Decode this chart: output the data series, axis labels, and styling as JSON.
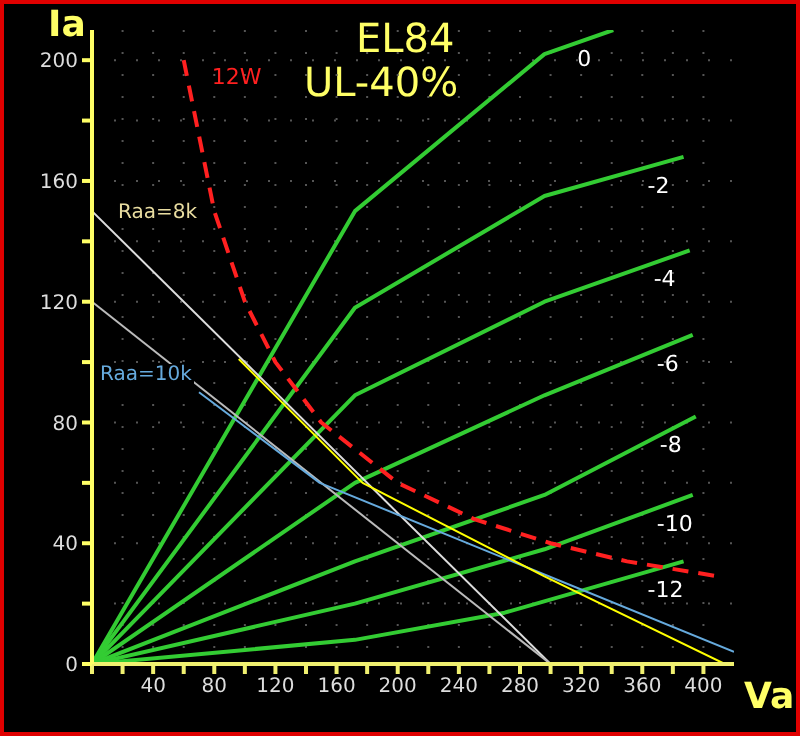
{
  "chart_data": {
    "type": "line",
    "title": "EL84",
    "subtitle": "UL-40%",
    "xlabel": "Va",
    "ylabel": "Ia",
    "xlim": [
      0,
      420
    ],
    "ylim": [
      0,
      210
    ],
    "xticks": [
      {
        "value": 0,
        "label": null
      },
      {
        "value": 20,
        "label": null
      },
      40,
      {
        "value": 60,
        "label": null
      },
      80,
      {
        "value": 100,
        "label": null
      },
      120,
      {
        "value": 140,
        "label": null
      },
      160,
      {
        "value": 180,
        "label": null
      },
      200,
      {
        "value": 220,
        "label": null
      },
      240,
      {
        "value": 260,
        "label": null
      },
      280,
      {
        "value": 300,
        "label": null
      },
      320,
      {
        "value": 340,
        "label": null
      },
      360,
      {
        "value": 380,
        "label": null
      },
      400
    ],
    "yticks": [
      0,
      {
        "value": 20,
        "label": null
      },
      40,
      {
        "value": 60,
        "label": null
      },
      80,
      {
        "value": 100,
        "label": null
      },
      120,
      {
        "value": 140,
        "label": null
      },
      160,
      {
        "value": 180,
        "label": null
      },
      200
    ],
    "grid": true,
    "marker": "none",
    "series": [
      {
        "name": "0",
        "color": "#33cc33",
        "x": [
          0,
          172,
          296,
          341
        ],
        "values": [
          0,
          150,
          202,
          210
        ]
      },
      {
        "name": "-2",
        "color": "#33cc33",
        "x": [
          0,
          172,
          296,
          387
        ],
        "values": [
          0,
          118,
          155,
          168
        ]
      },
      {
        "name": "-4",
        "color": "#33cc33",
        "x": [
          0,
          172,
          296,
          391
        ],
        "values": [
          0,
          89,
          120,
          137
        ]
      },
      {
        "name": "-6",
        "color": "#33cc33",
        "x": [
          0,
          172,
          296,
          393
        ],
        "values": [
          0,
          60,
          89,
          109
        ]
      },
      {
        "name": "-8",
        "color": "#33cc33",
        "x": [
          0,
          172,
          296,
          395
        ],
        "values": [
          0,
          34,
          56,
          82
        ]
      },
      {
        "name": "-10",
        "color": "#33cc33",
        "x": [
          0,
          172,
          296,
          393
        ],
        "values": [
          0,
          20,
          38,
          56
        ]
      },
      {
        "name": "-12",
        "color": "#33cc33",
        "x": [
          0,
          172,
          270,
          387
        ],
        "values": [
          0,
          8,
          17,
          34
        ]
      },
      {
        "name": "12W",
        "color": "#ff2020",
        "line_style": "dashed",
        "x": [
          60,
          80,
          100,
          120,
          150,
          200,
          250,
          300,
          350,
          410
        ],
        "values": [
          200,
          150,
          120,
          100,
          80,
          60,
          48,
          40,
          34,
          29
        ]
      },
      {
        "color": "#dddddd",
        "x": [
          0,
          300
        ],
        "values": [
          150,
          0
        ]
      },
      {
        "color": "#bbbbbb",
        "x": [
          0,
          300
        ],
        "values": [
          120,
          0
        ]
      },
      {
        "color": "#66aadd",
        "x": [
          70,
          149,
          420
        ],
        "values": [
          90,
          60,
          4
        ]
      },
      {
        "color": "#ffff00",
        "x": [
          96,
          177,
          296,
          414
        ],
        "values": [
          101,
          60,
          29,
          0
        ]
      }
    ],
    "annotations": [
      "Raa=8k",
      "Raa=10k"
    ]
  }
}
